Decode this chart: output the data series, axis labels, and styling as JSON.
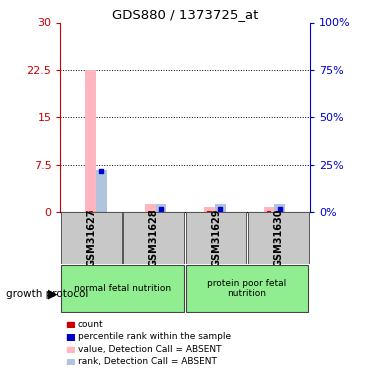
{
  "title": "GDS880 / 1373725_at",
  "samples": [
    "GSM31627",
    "GSM31628",
    "GSM31629",
    "GSM31630"
  ],
  "group1_label": "normal fetal nutrition",
  "group2_label": "protein poor fetal\nnutrition",
  "group_color": "#90EE90",
  "ylim_left": [
    0,
    30
  ],
  "ylim_right": [
    0,
    100
  ],
  "yticks_left": [
    0,
    7.5,
    15,
    22.5,
    30
  ],
  "yticks_right": [
    0,
    25,
    50,
    75,
    100
  ],
  "ytick_labels_left": [
    "0",
    "7.5",
    "15",
    "22.5",
    "30"
  ],
  "ytick_labels_right": [
    "0%",
    "25%",
    "50%",
    "75%",
    "100%"
  ],
  "value_absent": [
    22.5,
    1.2,
    0.7,
    0.8
  ],
  "rank_absent_pct": [
    22,
    4,
    4,
    4
  ],
  "count_val": [
    0.15,
    0.15,
    0.15,
    0.15
  ],
  "rank_percentile_val": [
    6.5,
    0.4,
    0.4,
    0.4
  ],
  "color_value_absent": "#FFB6C1",
  "color_rank_absent": "#B0C4DE",
  "color_count": "#CC0000",
  "color_rank_pct": "#0000CC",
  "axis_left_color": "#CC0000",
  "axis_right_color": "#0000CC",
  "label_bg": "#C8C8C8",
  "legend_labels": [
    "count",
    "percentile rank within the sample",
    "value, Detection Call = ABSENT",
    "rank, Detection Call = ABSENT"
  ],
  "legend_colors": [
    "#CC0000",
    "#0000CC",
    "#FFB6C1",
    "#B0C4DE"
  ]
}
